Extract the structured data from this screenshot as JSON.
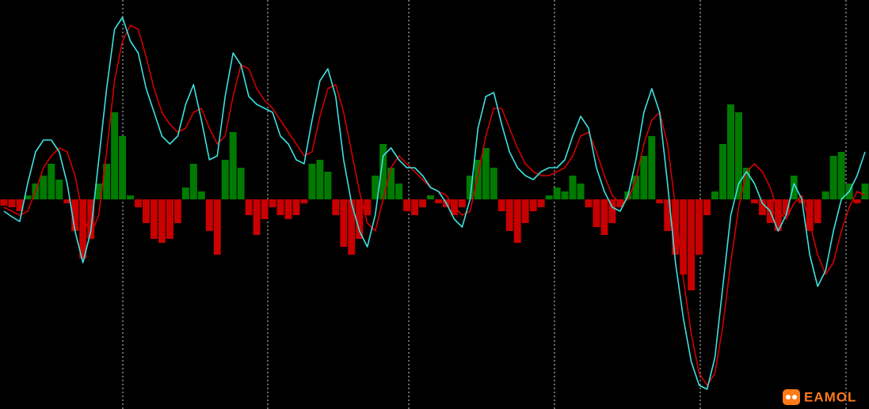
{
  "chart_data": {
    "type": "macd",
    "ylim": [
      -265,
      252
    ],
    "positive_color": "#007a00",
    "negative_color": "#c80000",
    "histogram": [
      -8,
      -10,
      -15,
      5,
      20,
      30,
      45,
      25,
      -5,
      -40,
      -75,
      -50,
      20,
      45,
      110,
      80,
      5,
      -10,
      -30,
      -50,
      -55,
      -50,
      -30,
      15,
      45,
      10,
      -40,
      -70,
      50,
      85,
      40,
      -20,
      -45,
      -25,
      -10,
      -20,
      -25,
      -20,
      -5,
      45,
      50,
      35,
      -20,
      -60,
      -70,
      -50,
      -20,
      30,
      70,
      40,
      20,
      -15,
      -20,
      -10,
      5,
      -5,
      -10,
      -20,
      -10,
      30,
      50,
      65,
      40,
      -15,
      -40,
      -55,
      -30,
      -15,
      -10,
      5,
      15,
      10,
      30,
      20,
      -10,
      -35,
      -45,
      -30,
      -10,
      10,
      30,
      55,
      80,
      -5,
      -40,
      -70,
      -95,
      -115,
      -70,
      -20,
      10,
      70,
      120,
      110,
      40,
      -5,
      -20,
      -30,
      -40,
      -20,
      30,
      -5,
      -40,
      -30,
      10,
      55,
      60,
      20,
      -5,
      20
    ],
    "series": [
      {
        "color": "#3ee0e0",
        "values": [
          -15,
          -22,
          -28,
          20,
          60,
          75,
          75,
          60,
          20,
          -40,
          -80,
          -40,
          50,
          140,
          215,
          230,
          200,
          185,
          140,
          110,
          80,
          70,
          80,
          120,
          145,
          100,
          50,
          55,
          130,
          185,
          170,
          130,
          120,
          115,
          110,
          80,
          70,
          50,
          45,
          100,
          150,
          165,
          130,
          50,
          -5,
          -40,
          -60,
          -20,
          55,
          65,
          50,
          40,
          40,
          30,
          15,
          10,
          -5,
          -25,
          -35,
          0,
          90,
          130,
          135,
          95,
          60,
          40,
          30,
          25,
          35,
          40,
          40,
          50,
          80,
          105,
          90,
          40,
          10,
          -10,
          -15,
          5,
          50,
          110,
          140,
          110,
          20,
          -80,
          -150,
          -205,
          -235,
          -240,
          -200,
          -110,
          -20,
          20,
          35,
          20,
          -5,
          -15,
          -40,
          -20,
          20,
          0,
          -70,
          -110,
          -90,
          -40,
          0,
          10,
          30,
          60
        ]
      },
      {
        "color": "#d00000",
        "values": [
          -10,
          -15,
          -20,
          -15,
          10,
          40,
          55,
          65,
          60,
          30,
          -20,
          -45,
          -20,
          60,
          150,
          200,
          220,
          215,
          180,
          140,
          110,
          95,
          85,
          90,
          110,
          115,
          90,
          70,
          80,
          130,
          170,
          165,
          140,
          125,
          115,
          100,
          85,
          70,
          55,
          60,
          105,
          140,
          145,
          110,
          60,
          10,
          -30,
          -40,
          0,
          40,
          55,
          45,
          35,
          25,
          15,
          10,
          5,
          -10,
          -20,
          -15,
          30,
          80,
          115,
          115,
          90,
          65,
          45,
          35,
          30,
          30,
          35,
          40,
          55,
          80,
          85,
          60,
          30,
          5,
          -5,
          0,
          25,
          70,
          100,
          110,
          70,
          -10,
          -100,
          -170,
          -220,
          -235,
          -220,
          -160,
          -80,
          -10,
          35,
          45,
          35,
          15,
          -15,
          -25,
          -5,
          5,
          -30,
          -70,
          -95,
          -80,
          -40,
          -10,
          10,
          5
        ]
      }
    ]
  },
  "watermark": "EAMOL"
}
